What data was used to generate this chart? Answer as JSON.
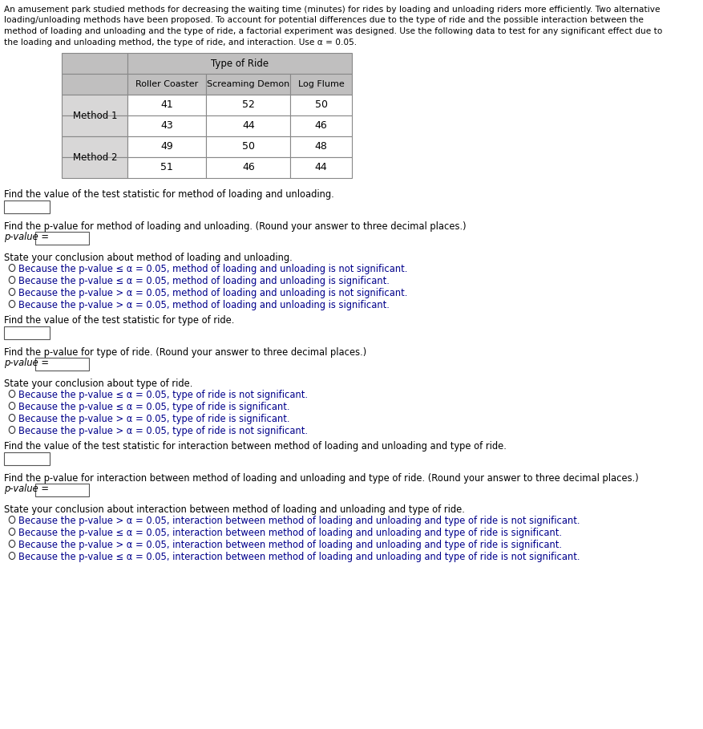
{
  "intro_lines": [
    "An amusement park studied methods for decreasing the waiting time (minutes) for rides by loading and unloading riders more efficiently. Two alternative",
    "loading/unloading methods have been proposed. To account for potential differences due to the type of ride and the possible interaction between the",
    "method of loading and unloading and the type of ride, a factorial experiment was designed. Use the following data to test for any significant effect due to",
    "the loading and unloading method, the type of ride, and interaction. Use α = 0.05."
  ],
  "table_header": "Type of Ride",
  "col_headers": [
    "Roller Coaster",
    "Screaming Demon",
    "Log Flume"
  ],
  "row_headers": [
    "Method 1",
    "Method 2"
  ],
  "data": [
    [
      41,
      52,
      50
    ],
    [
      43,
      44,
      46
    ],
    [
      49,
      50,
      48
    ],
    [
      51,
      46,
      44
    ]
  ],
  "sections": [
    {
      "stat_label": "Find the value of the test statistic for method of loading and unloading.",
      "pval_label": "Find the p-value for method of loading and unloading. (Round your answer to three decimal places.)",
      "conclusion_label": "State your conclusion about method of loading and unloading.",
      "options": [
        "Because the p-value ≤ α = 0.05, method of loading and unloading is not significant.",
        "Because the p-value ≤ α = 0.05, method of loading and unloading is significant.",
        "Because the p-value > α = 0.05, method of loading and unloading is not significant.",
        "Because the p-value > α = 0.05, method of loading and unloading is significant."
      ]
    },
    {
      "stat_label": "Find the value of the test statistic for type of ride.",
      "pval_label": "Find the p-value for type of ride. (Round your answer to three decimal places.)",
      "conclusion_label": "State your conclusion about type of ride.",
      "options": [
        "Because the p-value ≤ α = 0.05, type of ride is not significant.",
        "Because the p-value ≤ α = 0.05, type of ride is significant.",
        "Because the p-value > α = 0.05, type of ride is significant.",
        "Because the p-value > α = 0.05, type of ride is not significant."
      ]
    },
    {
      "stat_label": "Find the value of the test statistic for interaction between method of loading and unloading and type of ride.",
      "pval_label": "Find the p-value for interaction between method of loading and unloading and type of ride. (Round your answer to three decimal places.)",
      "conclusion_label": "State your conclusion about interaction between method of loading and unloading and type of ride.",
      "options": [
        "Because the p-value > α = 0.05, interaction between method of loading and unloading and type of ride is not significant.",
        "Because the p-value ≤ α = 0.05, interaction between method of loading and unloading and type of ride is significant.",
        "Because the p-value > α = 0.05, interaction between method of loading and unloading and type of ride is significant.",
        "Because the p-value ≤ α = 0.05, interaction between method of loading and unloading and type of ride is not significant."
      ]
    }
  ],
  "bg_color": "#ffffff",
  "table_header_bg": "#c0bfbf",
  "table_row_bg": "#d8d7d7",
  "table_data_bg": "#ffffff",
  "text_color": "#000000",
  "option_color": "#00008b",
  "intro_color": "#000000",
  "font_size": 8.0
}
